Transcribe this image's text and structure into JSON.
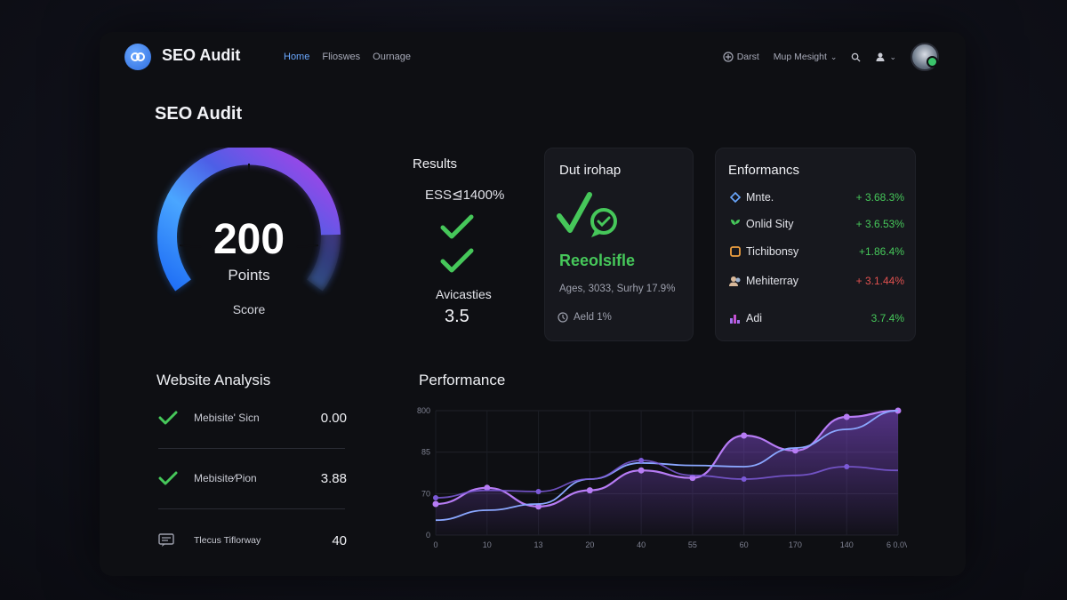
{
  "app": {
    "title": "SEO Audit"
  },
  "nav": [
    "Home",
    "Flioswes",
    "Ournage"
  ],
  "topbar": {
    "dash": "Darst",
    "menu": "Mup Mesight",
    "menu_chevron": "⌄",
    "user_chevron": "⌄"
  },
  "page_title": "SEO Audit",
  "gauge": {
    "value": "200",
    "unit": "Points",
    "label": "Score",
    "fill_fraction": 0.85
  },
  "results": {
    "heading": "Results",
    "subheading": "ESS⊴1400%",
    "label": "Avicasties",
    "value": "3.5"
  },
  "status_card": {
    "heading": "Dut irohap",
    "status": "Reeolsifle",
    "meta": "Ages, 3033, Surhy  17.9%",
    "footer": "Aeld 1%"
  },
  "performance_card": {
    "heading": "Enformancs",
    "items": [
      {
        "name": "Mnte.",
        "delta": "+  3.68.3%",
        "trend": "up",
        "icon": "diamond-icon"
      },
      {
        "name": "Onlid Sity",
        "delta": "+  3.6.53%",
        "trend": "up",
        "icon": "plant-icon"
      },
      {
        "name": "Tichibonsy",
        "delta": "+1.86.4%",
        "trend": "up",
        "icon": "square-icon"
      },
      {
        "name": "Mehiterray",
        "delta": "+  3.1.44%",
        "trend": "down",
        "icon": "people-icon"
      },
      {
        "name": "Adi",
        "delta": "3.7.4%",
        "trend": "up",
        "icon": "chart-icon"
      }
    ]
  },
  "website_analysis": {
    "title": "Website Analysis",
    "rows": [
      {
        "name": "Mebisite' Sicn",
        "value": "0.00",
        "icon": "check-icon"
      },
      {
        "name": "Mebisite⁄Pion",
        "value": "3.88",
        "icon": "check-icon"
      },
      {
        "name": "Tlecus Tiflorway",
        "value": "40",
        "icon": "comment-icon"
      }
    ]
  },
  "colors": {
    "accent": "#6aa8ff",
    "positive": "#46c75a",
    "negative": "#e0514f",
    "gauge_start": "#2f7cf0",
    "gauge_end": "#b13fe8",
    "line_purple": "#a46ff0",
    "line_blue": "#8aa7ff"
  },
  "chart_data": {
    "type": "line",
    "title": "Performance",
    "x": [
      0,
      10,
      13,
      20,
      40,
      55,
      60,
      170,
      140,
      "6 0.0V"
    ],
    "y_ticks": [
      "0",
      "70",
      "85",
      "800"
    ],
    "series": [
      {
        "values": [
          0.25,
          0.38,
          0.23,
          0.36,
          0.52,
          0.46,
          0.8,
          0.68,
          0.95,
          1.0
        ]
      },
      {
        "values": [
          0.12,
          0.2,
          0.25,
          0.45,
          0.58,
          0.56,
          0.55,
          0.7,
          0.85,
          1.0
        ]
      },
      {
        "values": [
          0.3,
          0.36,
          0.35,
          0.45,
          0.6,
          0.48,
          0.45,
          0.48,
          0.55,
          0.52
        ]
      }
    ]
  }
}
